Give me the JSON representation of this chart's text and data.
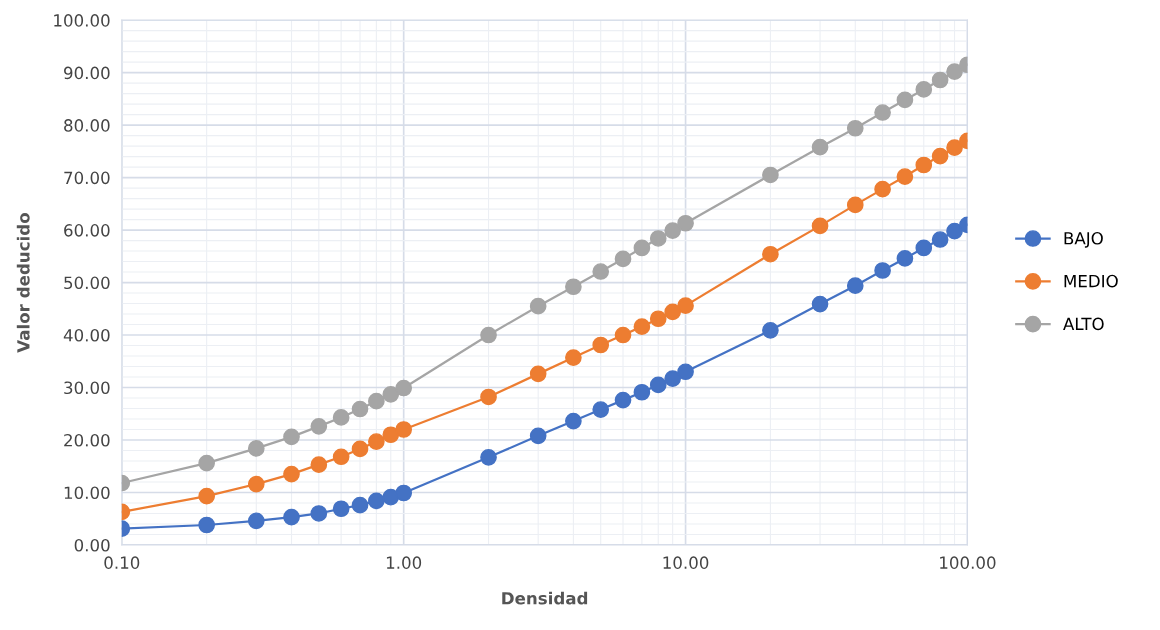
{
  "chart_data": {
    "type": "line",
    "xlabel": "Densidad",
    "ylabel": "Valor deducido",
    "log": "x",
    "x": [
      0.1,
      0.2,
      0.3,
      0.4,
      0.5,
      0.6,
      0.7,
      0.8,
      0.9,
      1,
      2,
      3,
      4,
      5,
      6,
      7,
      8,
      9,
      10,
      20,
      30,
      40,
      50,
      60,
      70,
      80,
      90,
      100
    ],
    "series": [
      {
        "name": "BAJO",
        "color": "#4472c4",
        "values": [
          3.1,
          3.8,
          4.6,
          5.3,
          6.0,
          6.9,
          7.6,
          8.4,
          9.1,
          9.9,
          16.7,
          20.8,
          23.6,
          25.8,
          27.6,
          29.1,
          30.5,
          31.7,
          33.0,
          40.9,
          45.9,
          49.4,
          52.3,
          54.6,
          56.6,
          58.2,
          59.8,
          61.0
        ]
      },
      {
        "name": "MEDIO",
        "color": "#ed7d31",
        "values": [
          6.3,
          9.3,
          11.6,
          13.5,
          15.3,
          16.8,
          18.3,
          19.7,
          21.0,
          22.0,
          28.2,
          32.6,
          35.7,
          38.1,
          40.0,
          41.6,
          43.1,
          44.4,
          45.6,
          55.4,
          60.8,
          64.8,
          67.8,
          70.2,
          72.4,
          74.1,
          75.7,
          77.0
        ]
      },
      {
        "name": "ALTO",
        "color": "#a5a5a5",
        "values": [
          11.8,
          15.6,
          18.4,
          20.6,
          22.6,
          24.3,
          25.9,
          27.4,
          28.7,
          29.9,
          40.0,
          45.5,
          49.2,
          52.1,
          54.5,
          56.6,
          58.4,
          59.9,
          61.3,
          70.5,
          75.8,
          79.4,
          82.4,
          84.8,
          86.8,
          88.6,
          90.2,
          91.5
        ]
      }
    ],
    "xlim": [
      0.1,
      100
    ],
    "xticks": [
      {
        "value": 0.1,
        "label": "0.10"
      },
      {
        "value": 1,
        "label": "1.00"
      },
      {
        "value": 10,
        "label": "10.00"
      },
      {
        "value": 100,
        "label": "100.00"
      }
    ],
    "ylim": [
      0,
      100
    ],
    "yticks": [
      {
        "value": 0,
        "label": "0.00"
      },
      {
        "value": 10,
        "label": "10.00"
      },
      {
        "value": 20,
        "label": "20.00"
      },
      {
        "value": 30,
        "label": "30.00"
      },
      {
        "value": 40,
        "label": "40.00"
      },
      {
        "value": 50,
        "label": "50.00"
      },
      {
        "value": 60,
        "label": "60.00"
      },
      {
        "value": 70,
        "label": "70.00"
      },
      {
        "value": 80,
        "label": "80.00"
      },
      {
        "value": 90,
        "label": "90.00"
      },
      {
        "value": 100,
        "label": "100.00"
      }
    ],
    "grid": true,
    "legend": "right",
    "marker": "circle",
    "line_style": "solid"
  }
}
